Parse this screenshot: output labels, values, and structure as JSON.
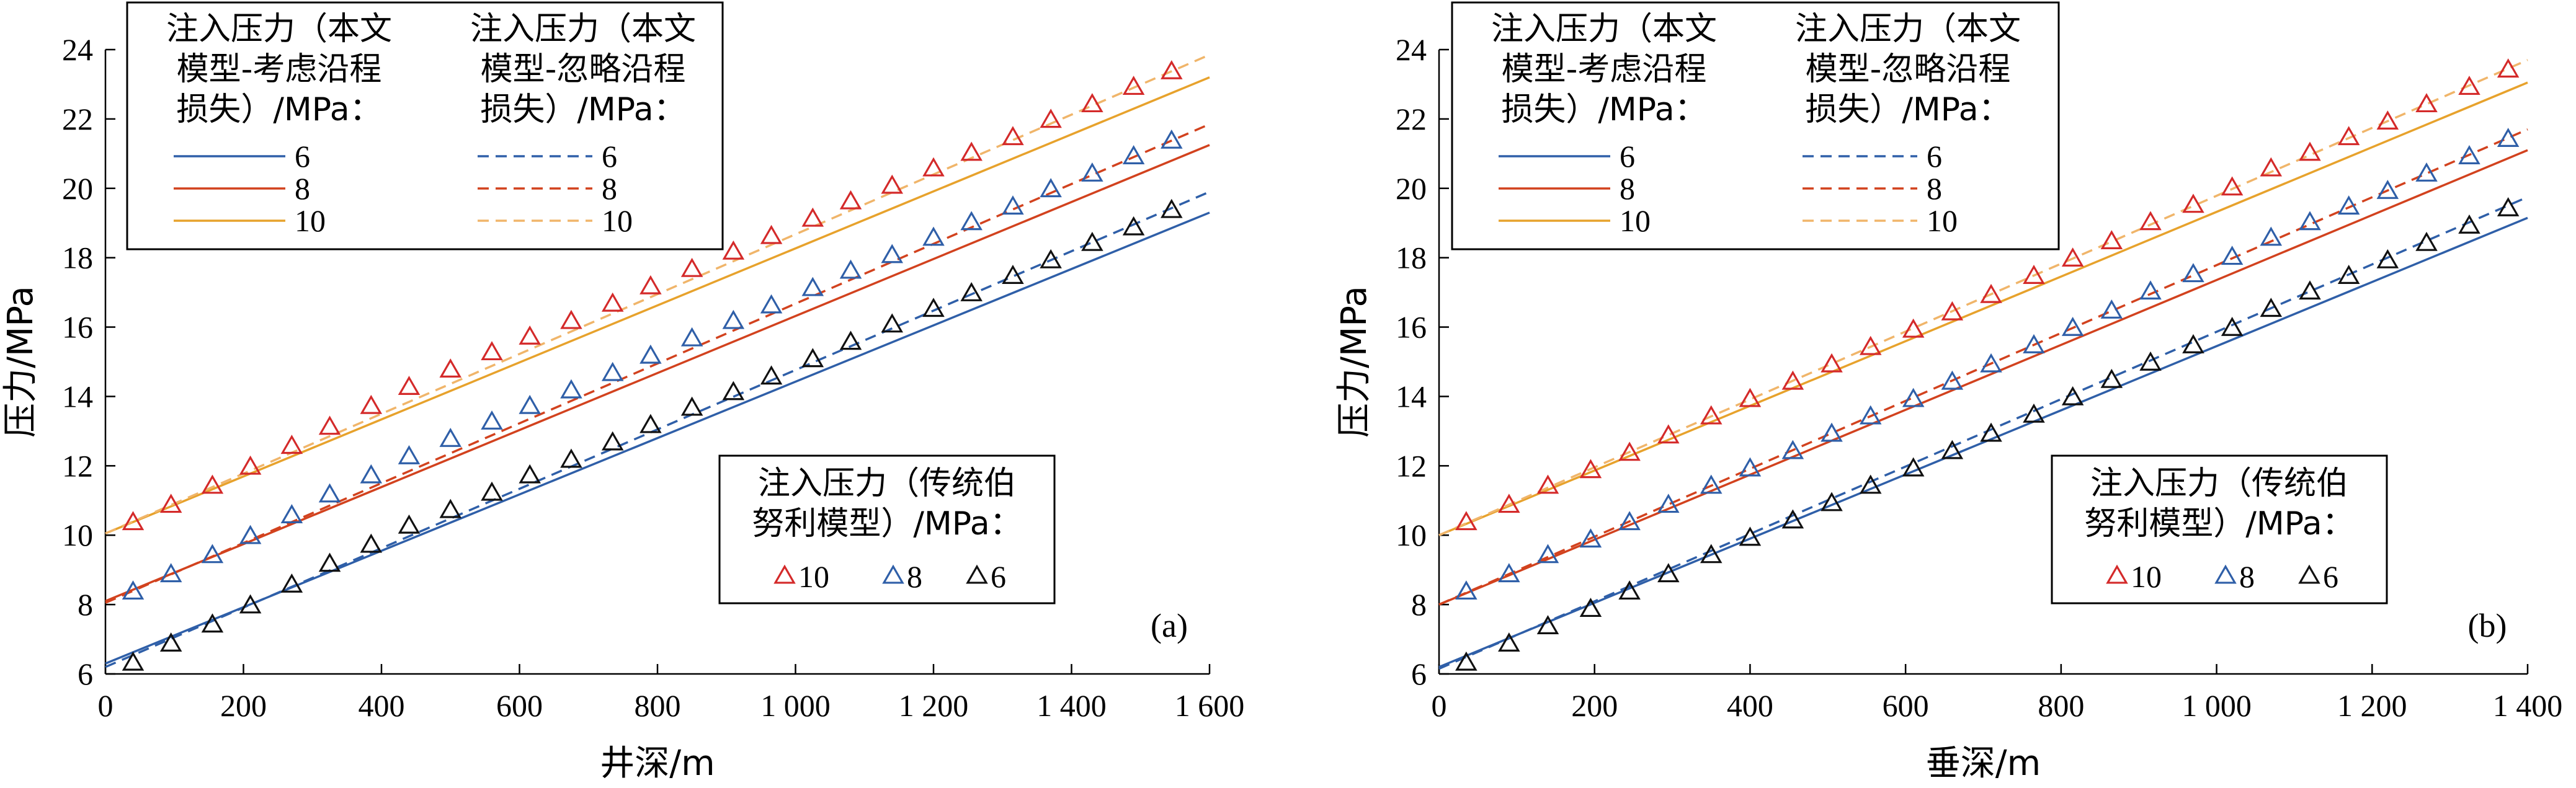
{
  "chart_data": [
    {
      "type": "line",
      "panel_label": "(a)",
      "xlabel": "井深/m",
      "ylabel": "压力/MPa",
      "xlim": [
        0,
        1600
      ],
      "ylim": [
        6,
        24
      ],
      "xticks": [
        0,
        200,
        400,
        600,
        800,
        1000,
        1200,
        1400,
        1600
      ],
      "xtick_labels": [
        "0",
        "200",
        "400",
        "600",
        "800",
        "1 000",
        "1 200",
        "1 400",
        "1 600"
      ],
      "yticks": [
        6,
        8,
        10,
        12,
        14,
        16,
        18,
        20,
        22,
        24
      ],
      "ytick_labels": [
        "6",
        "8",
        "10",
        "12",
        "14",
        "16",
        "18",
        "20",
        "22",
        "24"
      ],
      "legend_top": {
        "col1_title": [
          "注入压力（本文",
          "模型-考虑沿程",
          "损失）/MPa："
        ],
        "col2_title": [
          "注入压力（本文",
          "模型-忽略沿程",
          "损失）/MPa："
        ],
        "entries": [
          "6",
          "8",
          "10"
        ]
      },
      "legend_bottom": {
        "title": [
          "注入压力（传统伯",
          "努利模型）/MPa："
        ],
        "entries": [
          "10",
          "8",
          "6"
        ]
      },
      "series": [
        {
          "name": "6",
          "group": "considering",
          "style": "solid",
          "color": "#2f5fa8",
          "x": [
            0,
            1600
          ],
          "y": [
            6.3,
            19.3
          ]
        },
        {
          "name": "8",
          "group": "considering",
          "style": "solid",
          "color": "#d2421e",
          "x": [
            0,
            1600
          ],
          "y": [
            8.1,
            21.25
          ]
        },
        {
          "name": "10",
          "group": "considering",
          "style": "solid",
          "color": "#e7a22c",
          "x": [
            0,
            1600
          ],
          "y": [
            10.05,
            23.2
          ]
        },
        {
          "name": "6",
          "group": "ignoring",
          "style": "dashed",
          "color": "#2f5fa8",
          "x": [
            0,
            1600
          ],
          "y": [
            6.2,
            19.9
          ]
        },
        {
          "name": "8",
          "group": "ignoring",
          "style": "dashed",
          "color": "#d2421e",
          "x": [
            0,
            1600
          ],
          "y": [
            8.05,
            21.85
          ]
        },
        {
          "name": "10",
          "group": "ignoring",
          "style": "dashed",
          "color": "#f0b56a",
          "x": [
            0,
            1600
          ],
          "y": [
            10.05,
            23.85
          ]
        },
        {
          "name": "10",
          "group": "bernoulli",
          "style": "marker",
          "color": "#d42a2a",
          "x": [
            40,
            95,
            155,
            210,
            270,
            325,
            385,
            440,
            500,
            560,
            615,
            675,
            735,
            790,
            850,
            910,
            965,
            1025,
            1080,
            1140,
            1200,
            1255,
            1315,
            1370,
            1430,
            1490,
            1545
          ],
          "y": [
            10.35,
            10.85,
            11.4,
            11.95,
            12.55,
            13.1,
            13.7,
            14.25,
            14.75,
            15.25,
            15.7,
            16.15,
            16.65,
            17.15,
            17.65,
            18.15,
            18.6,
            19.1,
            19.6,
            20.05,
            20.55,
            21.0,
            21.45,
            21.95,
            22.4,
            22.9,
            23.35
          ]
        },
        {
          "name": "8",
          "group": "bernoulli",
          "style": "marker",
          "color": "#2f5fa8",
          "x": [
            40,
            95,
            155,
            210,
            270,
            325,
            385,
            440,
            500,
            560,
            615,
            675,
            735,
            790,
            850,
            910,
            965,
            1025,
            1080,
            1140,
            1200,
            1255,
            1315,
            1370,
            1430,
            1490,
            1545
          ],
          "y": [
            8.35,
            8.85,
            9.4,
            9.95,
            10.55,
            11.15,
            11.7,
            12.25,
            12.75,
            13.25,
            13.7,
            14.15,
            14.65,
            15.15,
            15.65,
            16.15,
            16.6,
            17.1,
            17.6,
            18.05,
            18.55,
            19.0,
            19.45,
            19.95,
            20.4,
            20.9,
            21.35
          ]
        },
        {
          "name": "6",
          "group": "bernoulli",
          "style": "marker",
          "color": "#111111",
          "x": [
            40,
            95,
            155,
            210,
            270,
            325,
            385,
            440,
            500,
            560,
            615,
            675,
            735,
            790,
            850,
            910,
            965,
            1025,
            1080,
            1140,
            1200,
            1255,
            1315,
            1370,
            1430,
            1490,
            1545
          ],
          "y": [
            6.3,
            6.85,
            7.4,
            7.95,
            8.55,
            9.15,
            9.7,
            10.25,
            10.7,
            11.2,
            11.7,
            12.15,
            12.65,
            13.15,
            13.65,
            14.1,
            14.55,
            15.05,
            15.55,
            16.05,
            16.5,
            16.95,
            17.45,
            17.9,
            18.4,
            18.85,
            19.35
          ]
        }
      ]
    },
    {
      "type": "line",
      "panel_label": "(b)",
      "xlabel": "垂深/m",
      "ylabel": "压力/MPa",
      "xlim": [
        0,
        1400
      ],
      "ylim": [
        6,
        24
      ],
      "xticks": [
        0,
        200,
        400,
        600,
        800,
        1000,
        1200,
        1400
      ],
      "xtick_labels": [
        "0",
        "200",
        "400",
        "600",
        "800",
        "1 000",
        "1 200",
        "1 400"
      ],
      "yticks": [
        6,
        8,
        10,
        12,
        14,
        16,
        18,
        20,
        22,
        24
      ],
      "ytick_labels": [
        "6",
        "8",
        "10",
        "12",
        "14",
        "16",
        "18",
        "20",
        "22",
        "24"
      ],
      "legend_top": {
        "col1_title": [
          "注入压力（本文",
          "模型-考虑沿程",
          "损失）/MPa："
        ],
        "col2_title": [
          "注入压力（本文",
          "模型-忽略沿程",
          "损失）/MPa："
        ],
        "entries": [
          "6",
          "8",
          "10"
        ]
      },
      "legend_bottom": {
        "title": [
          "注入压力（传统伯",
          "努利模型）/MPa："
        ],
        "entries": [
          "10",
          "8",
          "6"
        ]
      },
      "series": [
        {
          "name": "6",
          "group": "considering",
          "style": "solid",
          "color": "#2f5fa8",
          "x": [
            0,
            1400
          ],
          "y": [
            6.2,
            19.15
          ]
        },
        {
          "name": "8",
          "group": "considering",
          "style": "solid",
          "color": "#d2421e",
          "x": [
            0,
            1400
          ],
          "y": [
            8.0,
            21.1
          ]
        },
        {
          "name": "10",
          "group": "considering",
          "style": "solid",
          "color": "#e7a22c",
          "x": [
            0,
            1400
          ],
          "y": [
            10.0,
            23.05
          ]
        },
        {
          "name": "6",
          "group": "ignoring",
          "style": "dashed",
          "color": "#2f5fa8",
          "x": [
            0,
            1400
          ],
          "y": [
            6.15,
            19.75
          ]
        },
        {
          "name": "8",
          "group": "ignoring",
          "style": "dashed",
          "color": "#d2421e",
          "x": [
            0,
            1400
          ],
          "y": [
            8.0,
            21.7
          ]
        },
        {
          "name": "10",
          "group": "ignoring",
          "style": "dashed",
          "color": "#f0b56a",
          "x": [
            0,
            1400
          ],
          "y": [
            10.0,
            23.7
          ]
        },
        {
          "name": "10",
          "group": "bernoulli",
          "style": "marker",
          "color": "#d42a2a",
          "x": [
            35,
            90,
            140,
            195,
            245,
            295,
            350,
            400,
            455,
            505,
            555,
            610,
            660,
            710,
            765,
            815,
            865,
            915,
            970,
            1020,
            1070,
            1120,
            1170,
            1220,
            1270,
            1325,
            1375
          ],
          "y": [
            10.35,
            10.85,
            11.4,
            11.85,
            12.35,
            12.85,
            13.4,
            13.9,
            14.4,
            14.9,
            15.4,
            15.9,
            16.4,
            16.9,
            17.45,
            17.95,
            18.45,
            19.0,
            19.5,
            20.0,
            20.55,
            21.0,
            21.45,
            21.9,
            22.4,
            22.9,
            23.4
          ]
        },
        {
          "name": "8",
          "group": "bernoulli",
          "style": "marker",
          "color": "#2f5fa8",
          "x": [
            35,
            90,
            140,
            195,
            245,
            295,
            350,
            400,
            455,
            505,
            555,
            610,
            660,
            710,
            765,
            815,
            865,
            915,
            970,
            1020,
            1070,
            1120,
            1170,
            1220,
            1270,
            1325,
            1375
          ],
          "y": [
            8.35,
            8.85,
            9.4,
            9.85,
            10.35,
            10.85,
            11.4,
            11.9,
            12.4,
            12.9,
            13.4,
            13.9,
            14.4,
            14.9,
            15.45,
            15.95,
            16.45,
            17.0,
            17.5,
            18.0,
            18.55,
            19.0,
            19.45,
            19.9,
            20.4,
            20.9,
            21.4
          ]
        },
        {
          "name": "6",
          "group": "bernoulli",
          "style": "marker",
          "color": "#111111",
          "x": [
            35,
            90,
            140,
            195,
            245,
            295,
            350,
            400,
            455,
            505,
            555,
            610,
            660,
            710,
            765,
            815,
            865,
            915,
            970,
            1020,
            1070,
            1120,
            1170,
            1220,
            1270,
            1325,
            1375
          ],
          "y": [
            6.3,
            6.85,
            7.35,
            7.85,
            8.35,
            8.85,
            9.4,
            9.9,
            10.4,
            10.9,
            11.4,
            11.9,
            12.4,
            12.9,
            13.45,
            13.95,
            14.45,
            14.95,
            15.45,
            15.95,
            16.5,
            17.0,
            17.45,
            17.9,
            18.4,
            18.9,
            19.4
          ]
        }
      ]
    }
  ]
}
